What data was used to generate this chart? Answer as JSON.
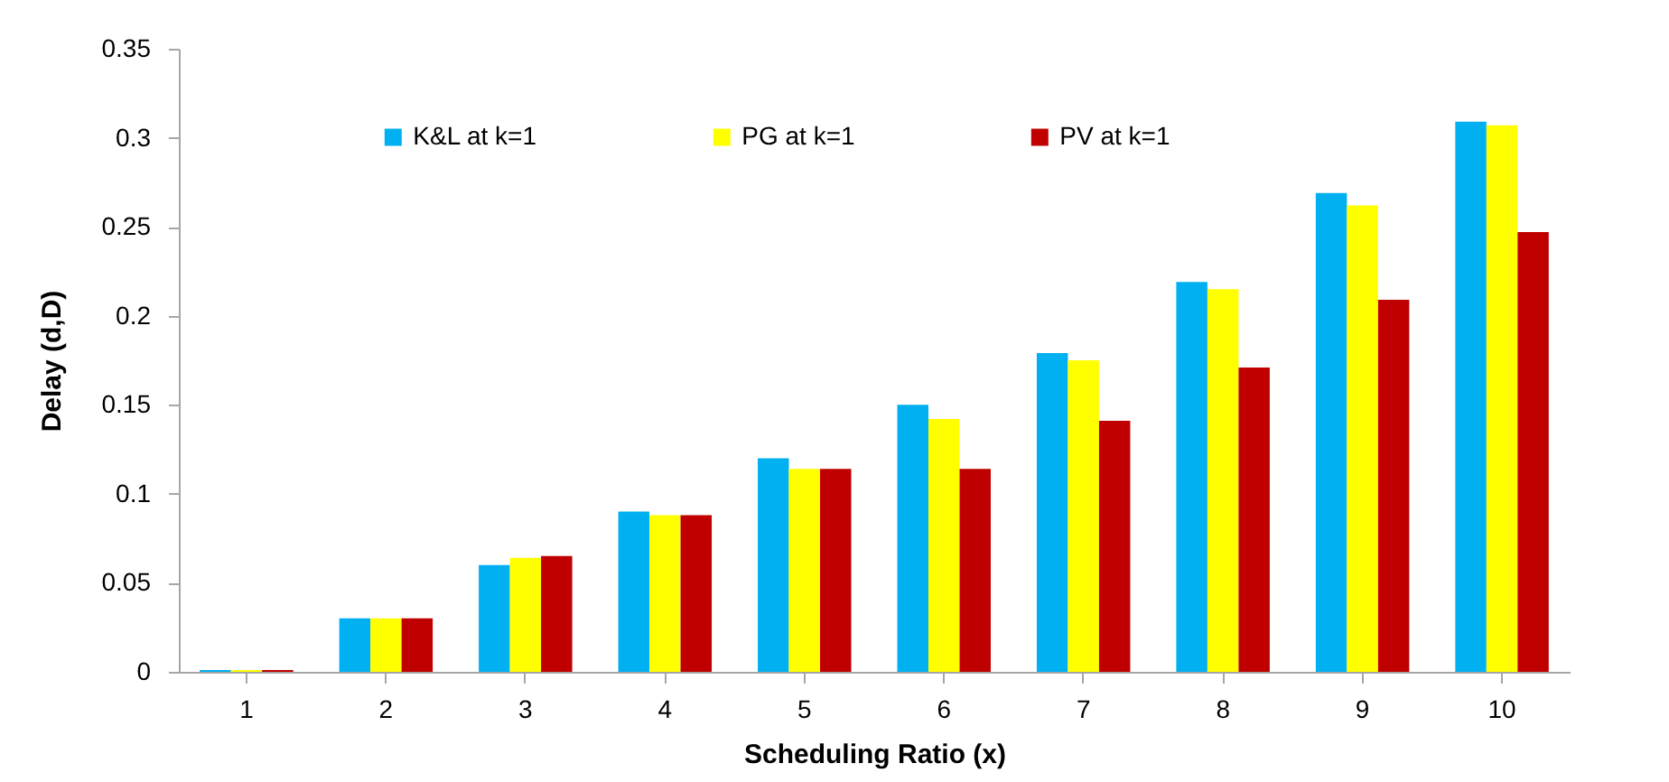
{
  "chart_data": {
    "type": "bar",
    "xlabel": "Scheduling Ratio (x)",
    "ylabel": "Delay (d,D)",
    "categories": [
      "1",
      "2",
      "3",
      "4",
      "5",
      "6",
      "7",
      "8",
      "9",
      "10"
    ],
    "series": [
      {
        "name": "K&L at k=1",
        "color": "#00b0f0",
        "values": [
          0.001,
          0.03,
          0.06,
          0.09,
          0.12,
          0.15,
          0.179,
          0.219,
          0.269,
          0.309
        ]
      },
      {
        "name": "PG at k=1",
        "color": "#ffff00",
        "values": [
          0.001,
          0.03,
          0.064,
          0.088,
          0.114,
          0.142,
          0.175,
          0.215,
          0.262,
          0.307
        ]
      },
      {
        "name": "PV at k=1",
        "color": "#c00000",
        "values": [
          0.001,
          0.03,
          0.065,
          0.088,
          0.114,
          0.114,
          0.141,
          0.171,
          0.209,
          0.247
        ]
      }
    ],
    "ylim": [
      0,
      0.35
    ],
    "yticks": [
      0,
      0.05,
      0.1,
      0.15,
      0.2,
      0.25,
      0.3,
      0.35
    ],
    "legend": "top"
  }
}
